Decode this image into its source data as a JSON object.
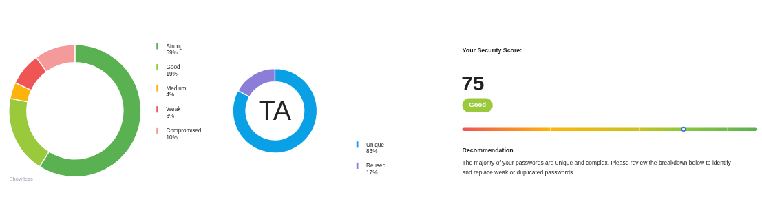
{
  "chart_data": [
    {
      "type": "donut",
      "categories": [
        "Strong",
        "Good",
        "Medium",
        "Weak",
        "Compromised"
      ],
      "values": [
        59,
        19,
        4,
        8,
        10
      ],
      "colors": [
        "#5ab152",
        "#9ac93b",
        "#fdb40a",
        "#ee5554",
        "#f49a9a"
      ],
      "value_labels": [
        "59%",
        "19%",
        "4%",
        "8%",
        "10%"
      ],
      "legend": "right",
      "annotations": [
        "Show less"
      ]
    },
    {
      "type": "donut",
      "categories": [
        "Unique",
        "Reused"
      ],
      "values": [
        83,
        17
      ],
      "colors": [
        "#0aa0e6",
        "#8c7ed8"
      ],
      "value_labels": [
        "83%",
        "17%"
      ],
      "legend": "right",
      "annotations": [
        "TA"
      ]
    },
    {
      "type": "other",
      "title": "Your Security Score:",
      "values": [
        75
      ],
      "value_labels": [
        "75"
      ],
      "annotations": [
        "Good",
        "Recommendation",
        "The majority of your passwords are unique and complex. Please review the breakdown below to identify\nand replace weak or duplicated passwords."
      ]
    }
  ]
}
